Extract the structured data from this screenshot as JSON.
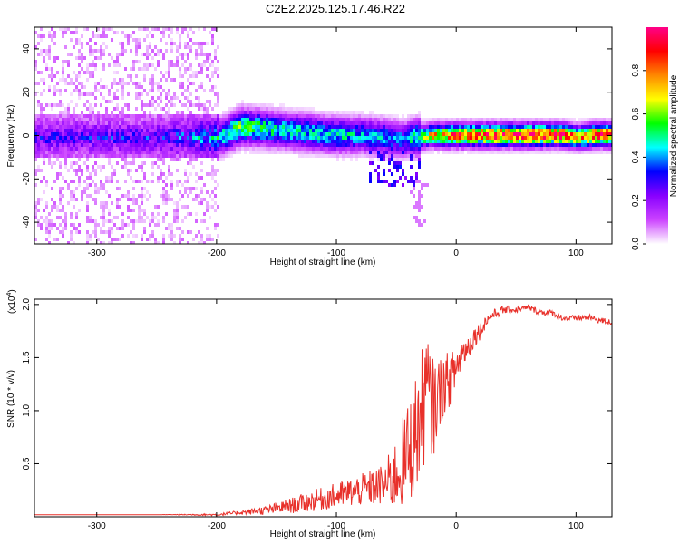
{
  "title": "C2E2.2025.125.17.46.R22",
  "chart_data": [
    {
      "type": "heatmap",
      "xlabel": "Height of straight line (km)",
      "ylabel": "Frequency (Hz)",
      "xlim": [
        -352,
        130
      ],
      "ylim": [
        -50,
        50
      ],
      "x_ticks": [
        -300,
        -200,
        -100,
        0,
        100
      ],
      "x_tick_labels": [
        "-300",
        "-200",
        "-100",
        "0",
        "100"
      ],
      "y_ticks": [
        -40,
        -20,
        0,
        20,
        40
      ],
      "y_tick_labels": [
        "-40",
        "-20",
        "0",
        "20",
        "40"
      ],
      "colorbar": {
        "label": "Normalized spectral amplitude",
        "range": [
          0,
          1
        ],
        "ticks": [
          0.0,
          0.2,
          0.4,
          0.6,
          0.8
        ],
        "tick_labels": [
          "0.0",
          "0.2",
          "0.4",
          "0.6",
          "0.8"
        ],
        "colormap": [
          "#ffffff",
          "#cc44ff",
          "#8800ff",
          "#0000ff",
          "#00ffff",
          "#00ff00",
          "#ffff00",
          "#ff8800",
          "#ff0000",
          "#ff0088"
        ]
      },
      "grid": false,
      "ridge": {
        "x": [
          -352,
          -300,
          -250,
          -198,
          -180,
          -160,
          -140,
          -120,
          -100,
          -80,
          -60,
          -45,
          -35,
          -20,
          0,
          30,
          60,
          90,
          100,
          115,
          130
        ],
        "frequency": [
          0,
          0,
          0,
          0,
          5,
          4,
          3,
          2,
          1,
          1,
          0,
          -1,
          0,
          1,
          1,
          1,
          1,
          1,
          0,
          1,
          1
        ],
        "amplitude": [
          0.3,
          0.3,
          0.3,
          0.45,
          0.55,
          0.5,
          0.45,
          0.45,
          0.45,
          0.4,
          0.4,
          0.35,
          0.5,
          0.7,
          0.8,
          0.85,
          0.9,
          0.85,
          0.7,
          0.85,
          0.9
        ]
      }
    },
    {
      "type": "line",
      "xlabel": "Height of straight line (km)",
      "ylabel": "SNR (10 * v/v)",
      "y_multiplier": "(x10",
      "y_multiplier_exp": "4",
      "y_multiplier_close": ")",
      "xlim": [
        -352,
        130
      ],
      "ylim": [
        0,
        2.05
      ],
      "x_ticks": [
        -300,
        -200,
        -100,
        0,
        100
      ],
      "x_tick_labels": [
        "-300",
        "-200",
        "-100",
        "0",
        "100"
      ],
      "y_ticks": [
        0.5,
        1.0,
        1.5,
        2.0
      ],
      "y_tick_labels": [
        "0.5",
        "1.0",
        "1.5",
        "2.0"
      ],
      "grid": false,
      "series": [
        {
          "color": "#e8302a",
          "x": [
            -352,
            -300,
            -250,
            -200,
            -180,
            -160,
            -140,
            -120,
            -100,
            -80,
            -60,
            -50,
            -40,
            -30,
            -25,
            -20,
            -15,
            -10,
            -5,
            0,
            5,
            10,
            15,
            20,
            25,
            30,
            40,
            50,
            60,
            70,
            80,
            90,
            100,
            110,
            120,
            130
          ],
          "y": [
            0.02,
            0.02,
            0.02,
            0.02,
            0.04,
            0.06,
            0.1,
            0.15,
            0.2,
            0.25,
            0.3,
            0.4,
            0.6,
            0.9,
            1.2,
            1.0,
            1.15,
            1.25,
            1.3,
            1.4,
            1.55,
            1.6,
            1.7,
            1.75,
            1.85,
            1.9,
            1.95,
            1.95,
            1.97,
            1.93,
            1.92,
            1.87,
            1.87,
            1.88,
            1.85,
            1.83
          ],
          "noise": [
            0,
            0,
            0,
            0.01,
            0.02,
            0.04,
            0.07,
            0.1,
            0.12,
            0.15,
            0.2,
            0.35,
            0.5,
            0.6,
            0.6,
            0.5,
            0.35,
            0.3,
            0.25,
            0.2,
            0.15,
            0.12,
            0.1,
            0.08,
            0.06,
            0.05,
            0.04,
            0.03,
            0.03,
            0.03,
            0.03,
            0.03,
            0.03,
            0.03,
            0.03,
            0.03
          ]
        }
      ]
    }
  ]
}
